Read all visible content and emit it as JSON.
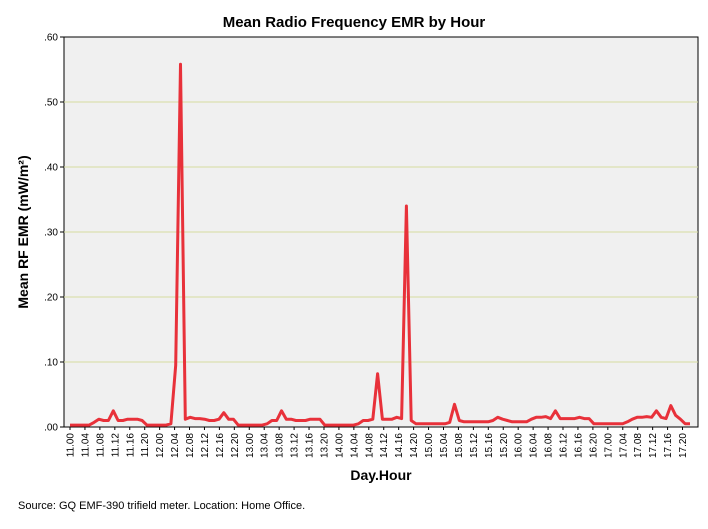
{
  "chart_data": {
    "type": "line",
    "title": "Mean Radio Frequency EMR by Hour",
    "xlabel": "Day.Hour",
    "ylabel": "Mean RF EMR (mW/m²)",
    "ylim": [
      0,
      0.6
    ],
    "yticks": [
      ".00",
      ".10",
      ".20",
      ".30",
      ".40",
      ".50",
      ".60"
    ],
    "ytick_values": [
      0,
      0.1,
      0.2,
      0.3,
      0.4,
      0.5,
      0.6
    ],
    "xtick_labels": [
      "11.00",
      "11.04",
      "11.08",
      "11.12",
      "11.16",
      "11.20",
      "12.00",
      "12.04",
      "12.08",
      "12.12",
      "12.16",
      "12.20",
      "13.00",
      "13.04",
      "13.08",
      "13.12",
      "13.16",
      "13.20",
      "14.00",
      "14.04",
      "14.08",
      "14.12",
      "14.16",
      "14.20",
      "15.00",
      "15.04",
      "15.08",
      "15.12",
      "15.16",
      "15.20",
      "16.00",
      "16.04",
      "16.08",
      "16.12",
      "16.16",
      "16.20",
      "17.00",
      "17.04",
      "17.08",
      "17.12",
      "17.16",
      "17.20"
    ],
    "grid": "horizontal",
    "colors": {
      "line": "#e8313a",
      "plot_bg": "#f0f0f0",
      "grid": "#d6dca0"
    },
    "series": [
      {
        "values": [
          0.003,
          0.003,
          0.003,
          0.003,
          0.003,
          0.007,
          0.012,
          0.01,
          0.01,
          0.025,
          0.01,
          0.01,
          0.012,
          0.012,
          0.012,
          0.01,
          0.003,
          0.003,
          0.003,
          0.003,
          0.003,
          0.005,
          0.095,
          0.558,
          0.012,
          0.015,
          0.013,
          0.013,
          0.012,
          0.01,
          0.01,
          0.012,
          0.022,
          0.012,
          0.012,
          0.003,
          0.003,
          0.003,
          0.003,
          0.003,
          0.003,
          0.005,
          0.01,
          0.01,
          0.025,
          0.012,
          0.012,
          0.01,
          0.01,
          0.01,
          0.012,
          0.012,
          0.012,
          0.003,
          0.003,
          0.003,
          0.003,
          0.003,
          0.003,
          0.003,
          0.005,
          0.01,
          0.01,
          0.012,
          0.082,
          0.012,
          0.012,
          0.012,
          0.015,
          0.013,
          0.34,
          0.01,
          0.005,
          0.005,
          0.005,
          0.005,
          0.005,
          0.005,
          0.005,
          0.007,
          0.035,
          0.01,
          0.008,
          0.008,
          0.008,
          0.008,
          0.008,
          0.008,
          0.01,
          0.015,
          0.012,
          0.01,
          0.008,
          0.008,
          0.008,
          0.008,
          0.012,
          0.015,
          0.015,
          0.016,
          0.013,
          0.025,
          0.013,
          0.013,
          0.013,
          0.013,
          0.015,
          0.013,
          0.013,
          0.005,
          0.005,
          0.005,
          0.005,
          0.005,
          0.005,
          0.005,
          0.008,
          0.012,
          0.015,
          0.015,
          0.016,
          0.015,
          0.025,
          0.015,
          0.013,
          0.033,
          0.018,
          0.012,
          0.005,
          0.005
        ]
      }
    ]
  },
  "source_note": "Source: GQ EMF-390 trifield meter. Location: Home Office."
}
